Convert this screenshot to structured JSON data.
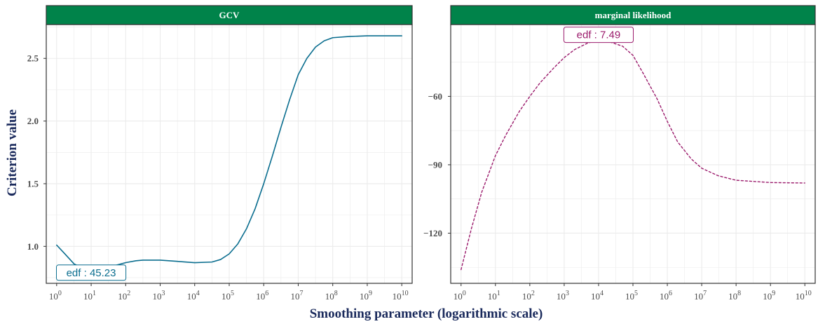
{
  "chart_data": [
    {
      "type": "line",
      "title": "GCV",
      "xscale": "log10",
      "xlim": [
        0.5,
        20000000000
      ],
      "ylim": [
        0.705,
        2.77
      ],
      "x_ticks": [
        1,
        10,
        100,
        1000,
        10000,
        100000,
        1000000,
        10000000,
        100000000,
        1000000000,
        10000000000
      ],
      "y_ticks": [
        1.0,
        1.5,
        2.0,
        2.5
      ],
      "y_tick_labels": [
        "1.0",
        "1.5",
        "2.0",
        "2.5"
      ],
      "grid": true,
      "color": "#0b6e8f",
      "dashed": false,
      "series": [
        {
          "x": [
            1,
            1.6,
            3.2,
            6.3,
            10,
            20,
            40,
            63,
            100,
            200,
            316,
            1000,
            3162,
            10000,
            31623,
            56234,
            100000,
            177828,
            316228,
            562341,
            1000000,
            1778279,
            3162278,
            5623413,
            10000000,
            17782794,
            31622777,
            56234133,
            100000000,
            316227766,
            1000000000,
            10000000000
          ],
          "y": [
            1.01,
            0.95,
            0.86,
            0.82,
            0.815,
            0.82,
            0.84,
            0.855,
            0.87,
            0.885,
            0.89,
            0.89,
            0.88,
            0.87,
            0.875,
            0.895,
            0.94,
            1.02,
            1.14,
            1.3,
            1.5,
            1.72,
            1.95,
            2.17,
            2.37,
            2.5,
            2.59,
            2.64,
            2.665,
            2.675,
            2.68,
            2.68
          ]
        }
      ],
      "annotation": {
        "text": "edf : 45.23",
        "x": 10,
        "y": 0.79
      }
    },
    {
      "type": "line",
      "title": "marginal likelihood",
      "xscale": "log10",
      "xlim": [
        0.5,
        20000000000
      ],
      "ylim": [
        -142.0,
        -28.5
      ],
      "x_ticks": [
        1,
        10,
        100,
        1000,
        10000,
        100000,
        1000000,
        10000000,
        100000000,
        1000000000,
        10000000000
      ],
      "y_ticks": [
        -120,
        -90,
        -60
      ],
      "y_tick_labels": [
        "−120",
        "−90",
        "−60"
      ],
      "grid": true,
      "color": "#9b1b6c",
      "dashed": true,
      "series": [
        {
          "x": [
            1,
            2,
            4,
            10,
            20,
            50,
            100,
            200,
            500,
            1000,
            2000,
            5000,
            10000,
            20000,
            50000,
            100000,
            200000,
            500000,
            1000000,
            2000000,
            5000000,
            10000000,
            30000000,
            100000000,
            1000000000,
            10000000000
          ],
          "y": [
            -136,
            -118,
            -102,
            -86,
            -77,
            -66.5,
            -60,
            -54,
            -47.5,
            -43,
            -39.5,
            -36.5,
            -35.5,
            -36,
            -38,
            -42,
            -50,
            -61,
            -71,
            -80,
            -87.5,
            -91.5,
            -94.8,
            -96.8,
            -97.8,
            -98.0
          ]
        }
      ],
      "annotation": {
        "text": "edf :  7.49",
        "x": 10000,
        "y": -33
      }
    }
  ],
  "axes": {
    "xlabel": "Smoothing parameter (logarithmic scale)",
    "ylabel": "Criterion value"
  },
  "colors": {
    "strip": "#00834a",
    "grid": "#ebebeb",
    "panel_border": "#333333",
    "axis_title": "#1a2a5c"
  }
}
